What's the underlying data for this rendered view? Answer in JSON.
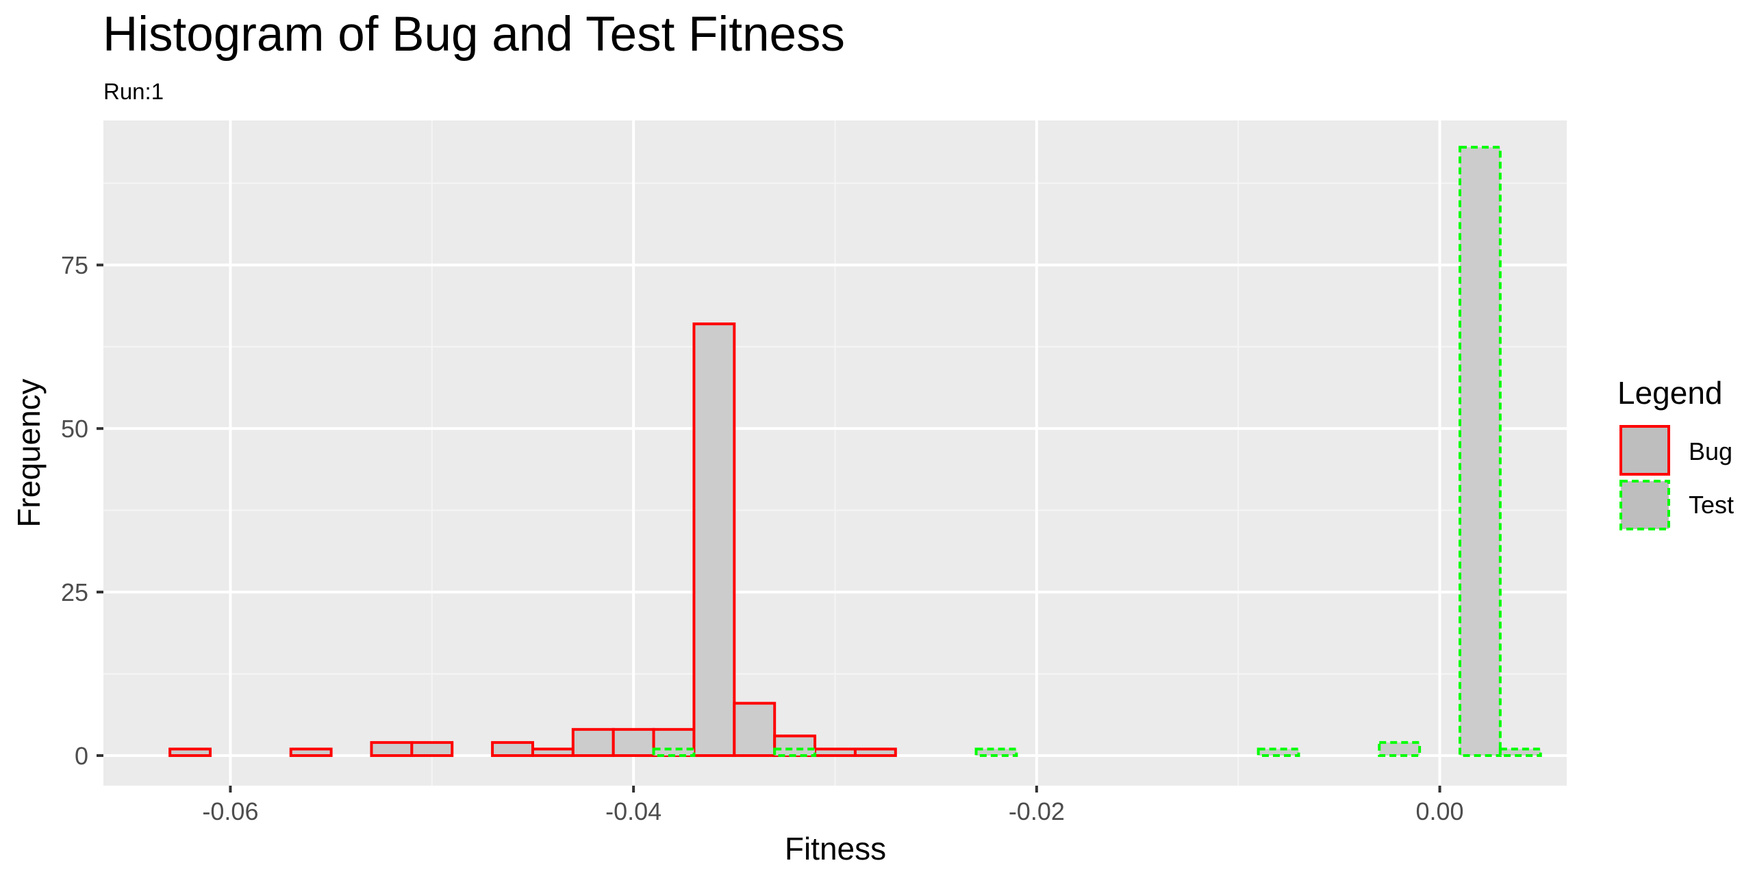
{
  "chart_data": {
    "type": "bar",
    "title": "Histogram of Bug and Test Fitness",
    "subtitle": "Run:1",
    "xlabel": "Fitness",
    "ylabel": "Frequency",
    "xlim": [
      -0.0663,
      0.0063
    ],
    "ylim": [
      -4.6,
      97.1
    ],
    "bin_width": 0.002,
    "grid": true,
    "legend_position": "right",
    "x_ticks": [
      {
        "value": -0.06,
        "label": "-0.06"
      },
      {
        "value": -0.04,
        "label": "-0.04"
      },
      {
        "value": -0.02,
        "label": "-0.02"
      },
      {
        "value": 0.0,
        "label": "0.00"
      }
    ],
    "y_ticks": [
      {
        "value": 0,
        "label": "0"
      },
      {
        "value": 25,
        "label": "25"
      },
      {
        "value": 50,
        "label": "50"
      },
      {
        "value": 75,
        "label": "75"
      }
    ],
    "legend": {
      "title": "Legend",
      "items": [
        {
          "label": "Bug",
          "stroke": "#ff0000",
          "fill": "#bebebe",
          "dashed": false
        },
        {
          "label": "Test",
          "stroke": "#00ff00",
          "fill": "#bebebe",
          "dashed": true
        }
      ]
    },
    "series": [
      {
        "name": "Bug",
        "stroke": "#ff0000",
        "fill": "#cccccc",
        "dashed": false,
        "bin_start": -0.063,
        "counts": [
          1,
          0,
          0,
          1,
          0,
          2,
          2,
          0,
          2,
          1,
          4,
          4,
          4,
          66,
          8,
          3,
          1,
          1,
          0,
          0,
          0,
          0,
          0,
          0,
          0,
          0,
          0,
          0,
          0,
          0,
          0,
          0,
          0,
          0
        ]
      },
      {
        "name": "Test",
        "stroke": "#00ff00",
        "fill": "#cccccc",
        "dashed": true,
        "bin_start": -0.063,
        "counts": [
          0,
          0,
          0,
          0,
          0,
          0,
          0,
          0,
          0,
          0,
          0,
          0,
          1,
          0,
          0,
          1,
          0,
          0,
          0,
          0,
          1,
          0,
          0,
          0,
          0,
          0,
          0,
          1,
          0,
          0,
          2,
          0,
          93,
          1
        ]
      }
    ]
  }
}
